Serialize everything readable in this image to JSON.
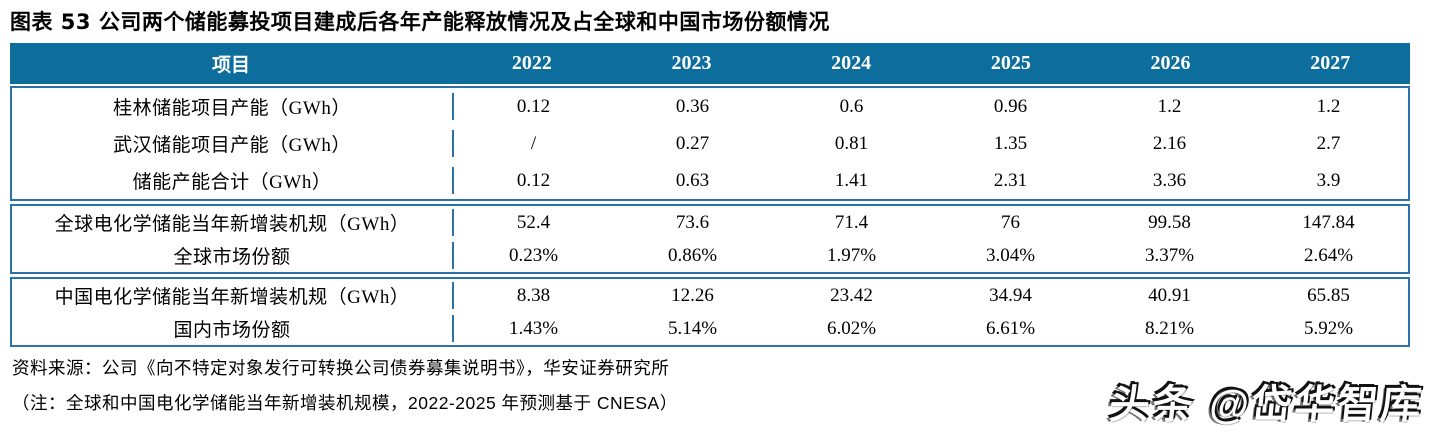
{
  "title": "图表 53 公司两个储能募投项目建成后各年产能释放情况及占全球和中国市场份额情况",
  "table": {
    "header": {
      "label": "项目",
      "years": [
        "2022",
        "2023",
        "2024",
        "2025",
        "2026",
        "2027"
      ]
    },
    "sections": [
      {
        "rows": [
          {
            "label": "桂林储能项目产能（GWh）",
            "values": [
              "0.12",
              "0.36",
              "0.6",
              "0.96",
              "1.2",
              "1.2"
            ]
          },
          {
            "label": "武汉储能项目产能（GWh）",
            "values": [
              "/",
              "0.27",
              "0.81",
              "1.35",
              "2.16",
              "2.7"
            ]
          },
          {
            "label": "储能产能合计（GWh）",
            "values": [
              "0.12",
              "0.63",
              "1.41",
              "2.31",
              "3.36",
              "3.9"
            ]
          }
        ]
      },
      {
        "rows": [
          {
            "label": "全球电化学储能当年新增装机规（GWh）",
            "values": [
              "52.4",
              "73.6",
              "71.4",
              "76",
              "99.58",
              "147.84"
            ]
          },
          {
            "label": "全球市场份额",
            "values": [
              "0.23%",
              "0.86%",
              "1.97%",
              "3.04%",
              "3.37%",
              "2.64%"
            ]
          }
        ]
      },
      {
        "rows": [
          {
            "label": "中国电化学储能当年新增装机规（GWh）",
            "values": [
              "8.38",
              "12.26",
              "23.42",
              "34.94",
              "40.91",
              "65.85"
            ]
          },
          {
            "label": "国内市场份额",
            "values": [
              "1.43%",
              "5.14%",
              "6.02%",
              "6.61%",
              "8.21%",
              "5.92%"
            ]
          }
        ]
      }
    ]
  },
  "footer": {
    "source": "资料来源：公司《向不特定对象发行可转换公司债券募集说明书》，华安证券研究所",
    "note": "（注：全球和中国电化学储能当年新增装机规模，2022-2025 年预测基于 CNESA）"
  },
  "watermark": "头条 @岱华智库",
  "colors": {
    "header_bg": "#0d6e9e",
    "table_border": "#2b72ad",
    "header_text": "#ffffff",
    "body_text": "#000000"
  }
}
